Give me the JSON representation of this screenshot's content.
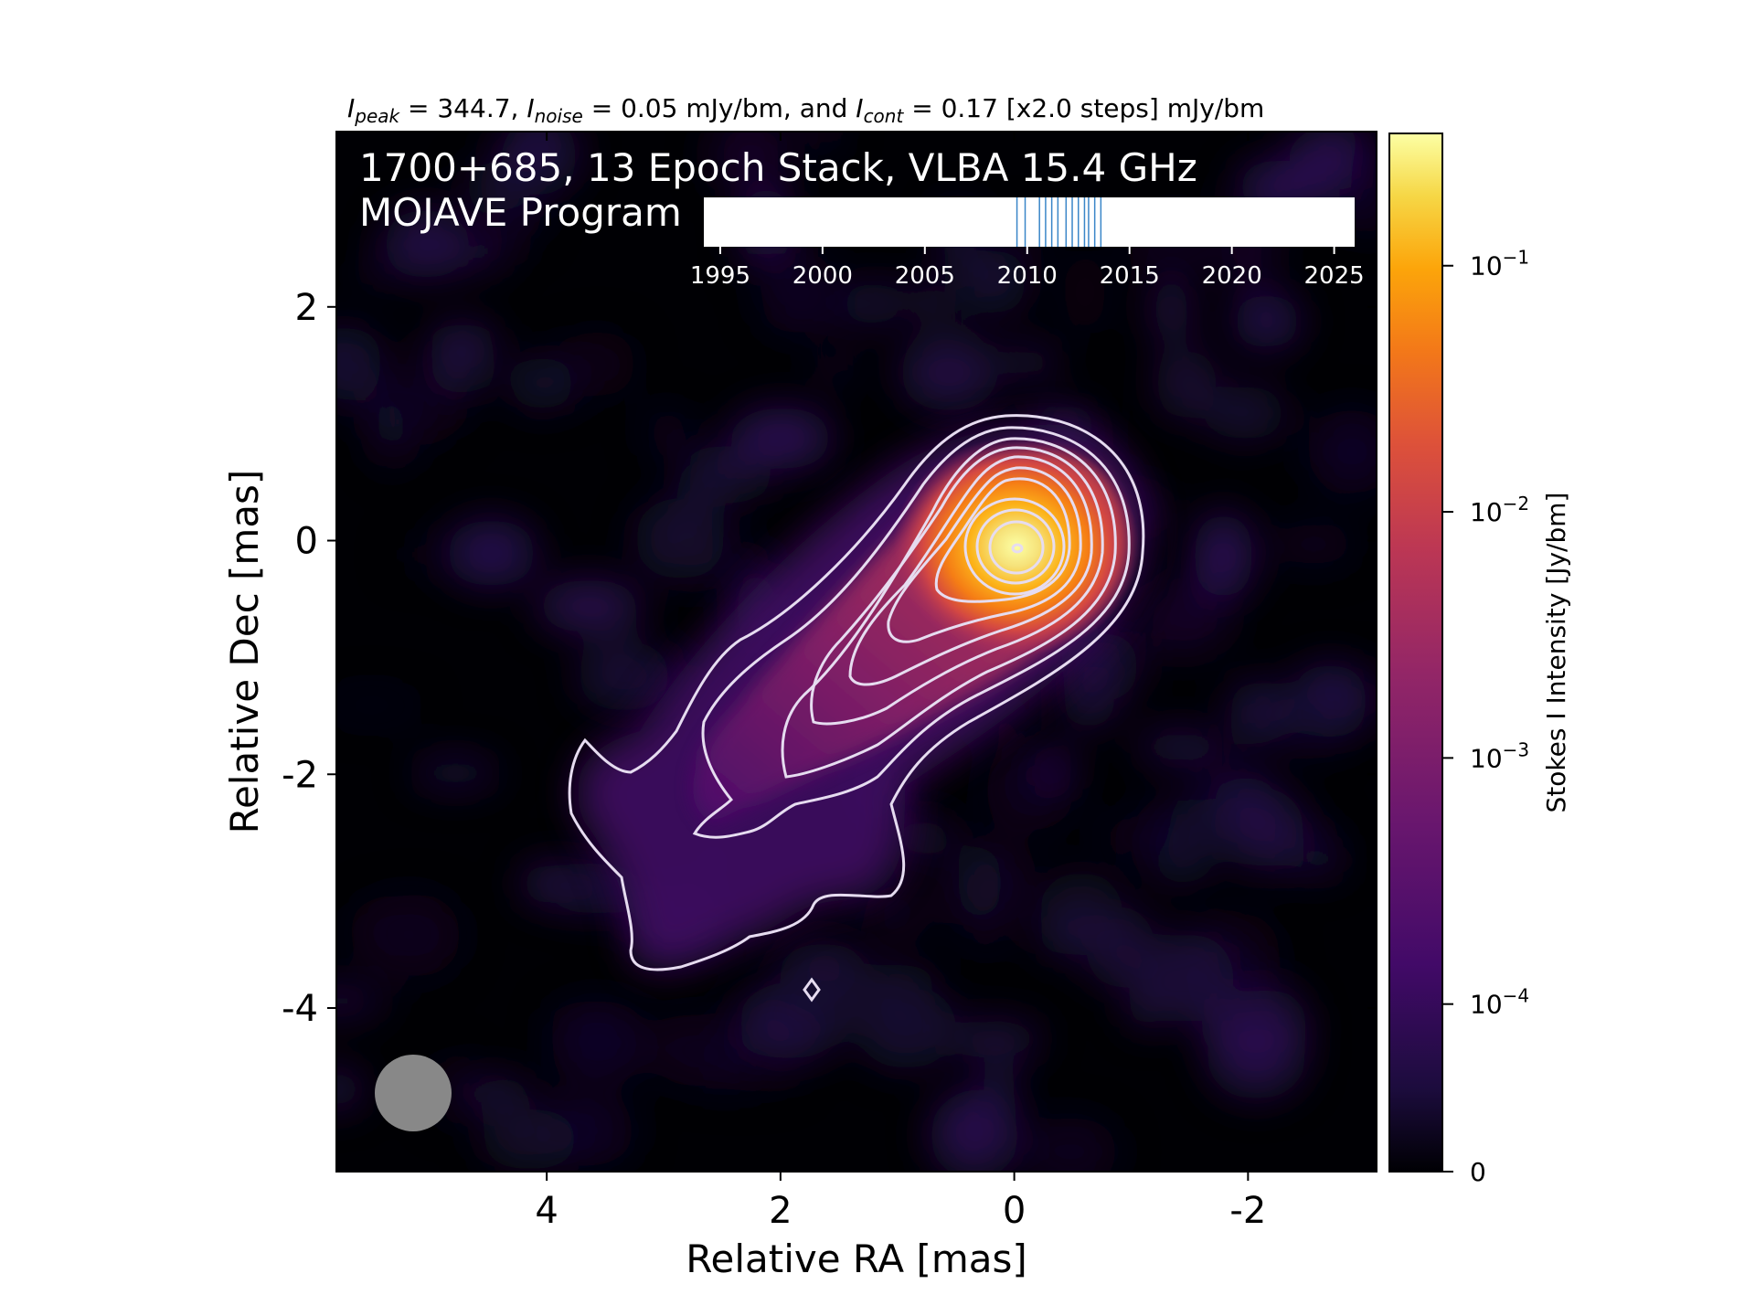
{
  "header": {
    "peak_symbol": "I",
    "peak_sub": "peak",
    "peak_value": " = 344.7, ",
    "noise_symbol": "I",
    "noise_sub": "noise",
    "noise_value": " = 0.05 mJy/bm, and ",
    "cont_symbol": "I",
    "cont_sub": "cont",
    "cont_value": " = 0.17 [x2.0 steps] mJy/bm"
  },
  "overlay": {
    "line1": "1700+685, 13 Epoch Stack, VLBA 15.4 GHz",
    "line2": "MOJAVE Program"
  },
  "colors": {
    "background": "#000004",
    "contour": "#e6dcf0",
    "beam": "#888888",
    "epoch_line": "#3a86c8"
  },
  "chart_data": {
    "type": "heatmap",
    "colormap": "inferno",
    "colorscale": "log",
    "xlabel": "Relative RA [mas]",
    "ylabel": "Relative Dec [mas]",
    "xlim": [
      5.8,
      -3.1
    ],
    "ylim": [
      -5.4,
      3.5
    ],
    "x_ticks": [
      4,
      2,
      0,
      -2
    ],
    "y_ticks": [
      2,
      0,
      -2,
      -4
    ],
    "x_tick_labels": [
      "4",
      "2",
      "0",
      "-2"
    ],
    "y_tick_labels": [
      "2",
      "0",
      "-2",
      "-4"
    ],
    "colorbar": {
      "label": "Stokes I Intensity [Jy/bm]",
      "ticks": [
        {
          "value": 0.1,
          "base": "10",
          "exp": "−1"
        },
        {
          "value": 0.01,
          "base": "10",
          "exp": "−2"
        },
        {
          "value": 0.001,
          "base": "10",
          "exp": "−3"
        },
        {
          "value": 0.0001,
          "base": "10",
          "exp": "−4"
        },
        {
          "value": 0,
          "base": "0",
          "exp": ""
        }
      ],
      "max": 0.3447
    },
    "core": {
      "ra": 0.0,
      "dec": 0.0,
      "peak_jy": 0.3447
    },
    "jet_direction": "south-east",
    "contour_base_mjy": 0.17,
    "contour_step": 2.0,
    "contour_count": 11,
    "beam": {
      "ra": 5.2,
      "dec": -4.75,
      "major_mas": 0.65,
      "minor_mas": 0.65
    },
    "epoch_timeline": {
      "xlim": [
        1994.2,
        2026.0
      ],
      "ticks": [
        1995,
        2000,
        2005,
        2010,
        2015,
        2020,
        2025
      ],
      "tick_labels": [
        "1995",
        "2000",
        "2005",
        "2010",
        "2015",
        "2020",
        "2025"
      ],
      "epochs": [
        2009.5,
        2009.9,
        2010.6,
        2010.9,
        2011.2,
        2011.5,
        2011.9,
        2012.2,
        2012.5,
        2012.8,
        2013.0,
        2013.3,
        2013.6
      ]
    }
  }
}
